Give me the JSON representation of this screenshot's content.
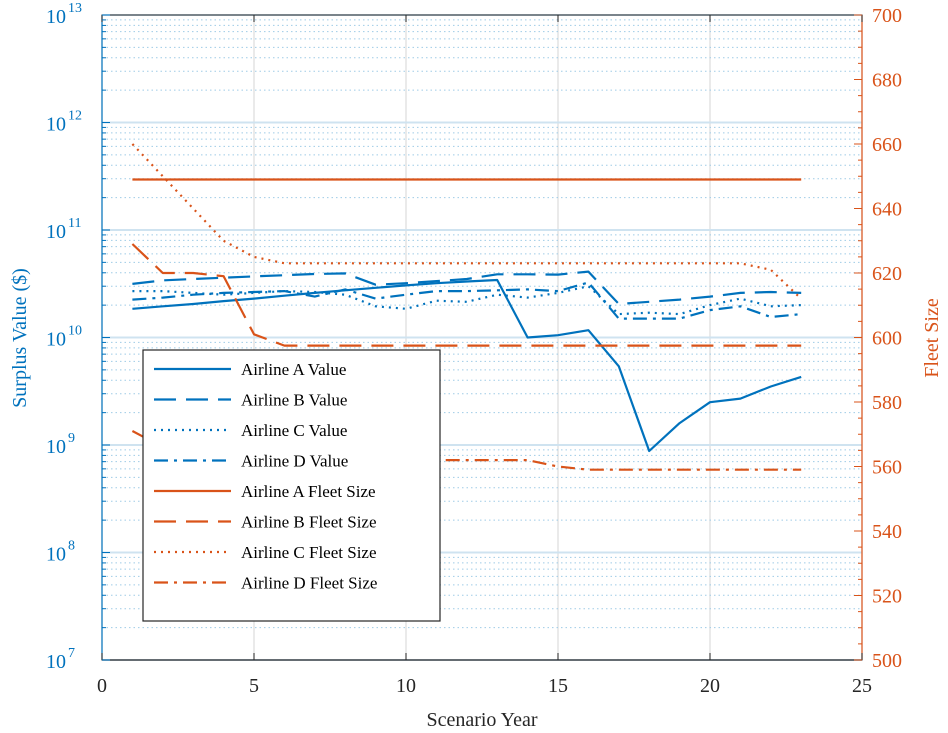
{
  "chart_data": {
    "type": "line",
    "xlabel": "Scenario Year",
    "ylabel_left": "Surplus Value ($)",
    "ylabel_right": "Fleet Size",
    "xlim": [
      0,
      25
    ],
    "x_ticks": [
      "0",
      "5",
      "10",
      "15",
      "20",
      "25"
    ],
    "ylim_left": [
      10000000,
      10000000000000
    ],
    "y_left_scale": "log",
    "y_left_ticks": [
      {
        "base": "10",
        "exp": "7"
      },
      {
        "base": "10",
        "exp": "8"
      },
      {
        "base": "10",
        "exp": "9"
      },
      {
        "base": "10",
        "exp": "10"
      },
      {
        "base": "10",
        "exp": "11"
      },
      {
        "base": "10",
        "exp": "12"
      },
      {
        "base": "10",
        "exp": "13"
      }
    ],
    "ylim_right": [
      500,
      700
    ],
    "y_right_ticks": [
      "500",
      "520",
      "540",
      "560",
      "580",
      "600",
      "620",
      "640",
      "660",
      "680",
      "700"
    ],
    "grid": true,
    "legend_position": "lower-left",
    "colors": {
      "left_axis": "#0072BD",
      "right_axis": "#D95319"
    },
    "x": [
      1,
      2,
      3,
      4,
      5,
      6,
      7,
      8,
      9,
      10,
      11,
      12,
      13,
      14,
      15,
      16,
      17,
      18,
      19,
      20,
      21,
      22,
      23
    ],
    "series": [
      {
        "name": "Airline A Value",
        "axis": "left",
        "dash": "solid",
        "values": [
          18500000000,
          19500000000,
          20500000000,
          21800000000,
          23000000000,
          24500000000,
          26000000000,
          27500000000,
          29000000000,
          30500000000,
          32000000000,
          33200000000,
          34300000000,
          10000000000,
          10500000000,
          11700000000,
          5400000000,
          880000000,
          1600000000,
          2500000000,
          2700000000,
          3500000000,
          4300000000
        ]
      },
      {
        "name": "Airline B Value",
        "axis": "left",
        "dash": "dash",
        "values": [
          31500000000,
          34000000000,
          35000000000,
          36000000000,
          37000000000,
          38000000000,
          39000000000,
          39500000000,
          31000000000,
          32000000000,
          33500000000,
          35000000000,
          38700000000,
          38700000000,
          38500000000,
          41000000000,
          20500000000,
          21500000000,
          22500000000,
          24000000000,
          26000000000,
          26500000000,
          26000000000
        ]
      },
      {
        "name": "Airline C Value",
        "axis": "left",
        "dash": "dot",
        "values": [
          27000000000,
          27000000000,
          26000000000,
          25000000000,
          26000000000,
          27000000000,
          26500000000,
          25000000000,
          19500000000,
          18500000000,
          22000000000,
          21500000000,
          25000000000,
          23500000000,
          26000000000,
          30000000000,
          16500000000,
          17000000000,
          16500000000,
          20000000000,
          23000000000,
          19500000000,
          20000000000
        ]
      },
      {
        "name": "Airline D Value",
        "axis": "left",
        "dash": "dashdot",
        "values": [
          22500000000,
          23500000000,
          25000000000,
          26000000000,
          26500000000,
          27000000000,
          24000000000,
          28000000000,
          23000000000,
          25000000000,
          27000000000,
          27000000000,
          27500000000,
          28000000000,
          27000000000,
          32500000000,
          15000000000,
          15000000000,
          15000000000,
          18000000000,
          19500000000,
          15500000000,
          16500000000
        ]
      },
      {
        "name": "Airline A Fleet Size",
        "axis": "right",
        "dash": "solid",
        "values": [
          649,
          649,
          649,
          649,
          649,
          649,
          649,
          649,
          649,
          649,
          649,
          649,
          649,
          649,
          649,
          649,
          649,
          649,
          649,
          649,
          649,
          649,
          649
        ]
      },
      {
        "name": "Airline B Fleet Size",
        "axis": "right",
        "dash": "dash",
        "values": [
          629,
          620,
          620,
          619,
          601,
          597.5,
          597.5,
          597.5,
          597.5,
          597.5,
          597.5,
          597.5,
          597.5,
          597.5,
          597.5,
          597.5,
          597.5,
          597.5,
          597.5,
          597.5,
          597.5,
          597.5,
          597.5
        ]
      },
      {
        "name": "Airline C Fleet Size",
        "axis": "right",
        "dash": "dot",
        "values": [
          660,
          650,
          640,
          630,
          625,
          623,
          623,
          623,
          623,
          623,
          623,
          623,
          623,
          623,
          623,
          623,
          623,
          623,
          623,
          623,
          623,
          621,
          612
        ]
      },
      {
        "name": "Airline D Fleet Size",
        "axis": "right",
        "dash": "dashdot",
        "values": [
          571,
          566,
          563,
          562,
          562,
          562,
          562,
          562,
          562,
          562,
          562,
          562,
          562,
          562,
          560,
          559,
          559,
          559,
          559,
          559,
          559,
          559,
          559
        ]
      }
    ]
  }
}
